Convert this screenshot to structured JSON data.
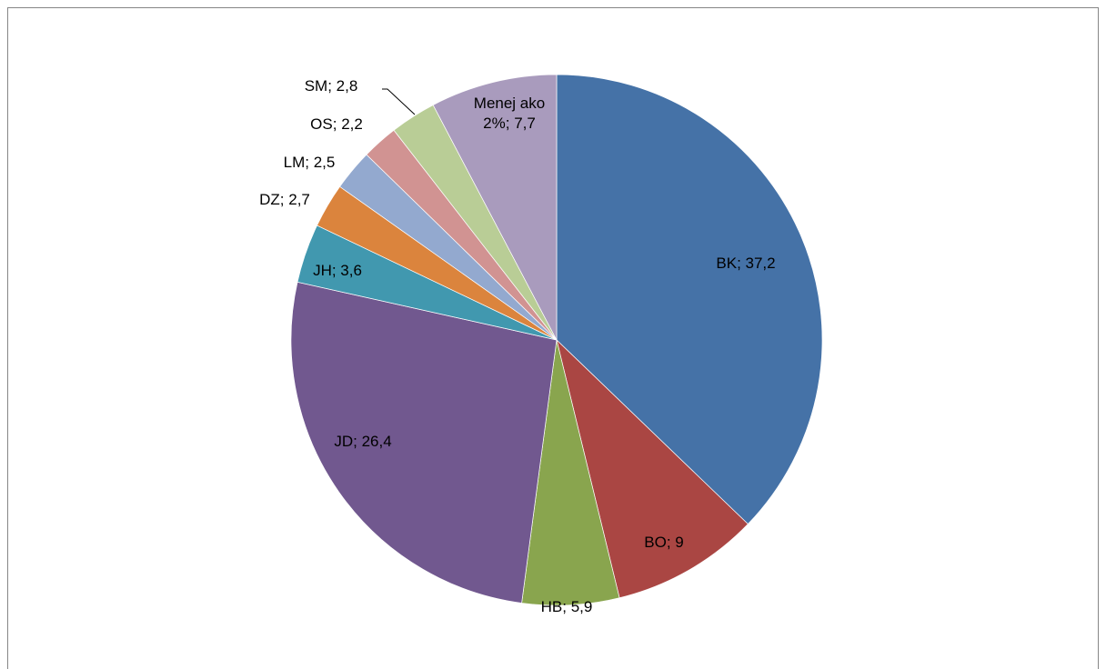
{
  "chart_data": {
    "type": "pie",
    "categories": [
      "BK",
      "BO",
      "HB",
      "JD",
      "JH",
      "DZ",
      "LM",
      "OS",
      "SM",
      "Menej ako 2%"
    ],
    "values": [
      37.2,
      9,
      5.9,
      26.4,
      3.6,
      2.7,
      2.5,
      2.2,
      2.8,
      7.7
    ],
    "value_labels": [
      "37,2",
      "9",
      "5,9",
      "26,4",
      "3,6",
      "2,7",
      "2,5",
      "2,2",
      "2,8",
      "7,7"
    ],
    "label_separator": "; ",
    "colors": [
      "#4572a7",
      "#aa4643",
      "#89a54e",
      "#71588f",
      "#4198af",
      "#db843d",
      "#93a9cf",
      "#d19392",
      "#b9cd96",
      "#a99bbd"
    ]
  }
}
